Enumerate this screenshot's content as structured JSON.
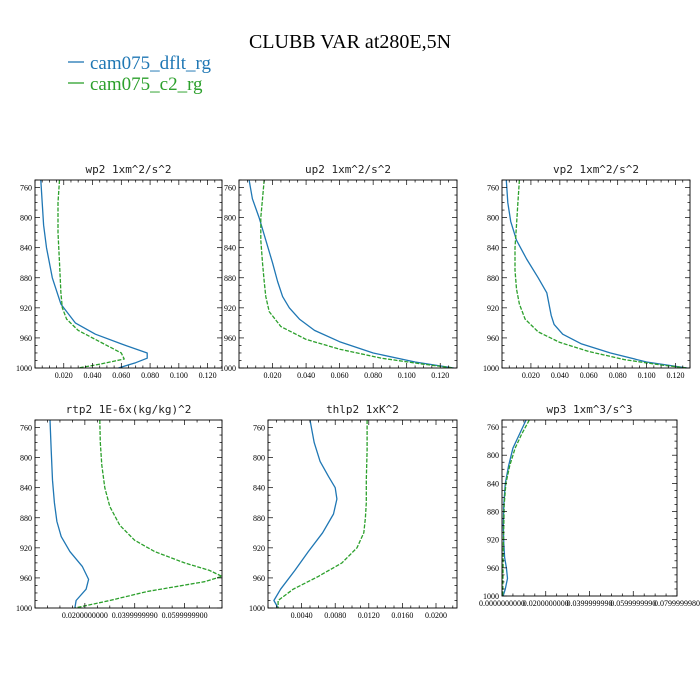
{
  "figure": {
    "title": "CLUBB VAR at280E,5N",
    "colors": {
      "dflt": "#1f77b4",
      "c2": "#2ca02c"
    },
    "legend": [
      {
        "label": "cam075_dflt_rg",
        "color": "#1f77b4"
      },
      {
        "label": "cam075_c2_rg",
        "color": "#2ca02c"
      }
    ]
  },
  "chart_data": [
    {
      "type": "line",
      "title": "wp2   1xm^2/s^2",
      "xlim": [
        0,
        0.13
      ],
      "ylim": [
        1000,
        750
      ],
      "xticks": [
        0.02,
        0.04,
        0.06,
        0.08,
        0.1,
        0.12
      ],
      "xtick_labels": [
        "0.020",
        "0.040",
        "0.060",
        "0.080",
        "0.100",
        "0.120"
      ],
      "yticks": [
        760,
        800,
        840,
        880,
        920,
        960,
        1000
      ],
      "series": [
        {
          "name": "cam075_dflt_rg",
          "color": "#1f77b4",
          "dashed": false,
          "x": [
            0.004,
            0.005,
            0.006,
            0.008,
            0.012,
            0.018,
            0.028,
            0.042,
            0.06,
            0.078,
            0.078,
            0.07,
            0.058
          ],
          "y": [
            750,
            780,
            810,
            840,
            880,
            915,
            940,
            955,
            968,
            980,
            987,
            993,
            1000
          ]
        },
        {
          "name": "cam075_c2_rg",
          "color": "#2ca02c",
          "dashed": true,
          "x": [
            0.017,
            0.016,
            0.016,
            0.017,
            0.018,
            0.019,
            0.022,
            0.03,
            0.045,
            0.06,
            0.062,
            0.045,
            0.03
          ],
          "y": [
            750,
            780,
            820,
            860,
            900,
            920,
            935,
            950,
            965,
            980,
            988,
            995,
            1000
          ]
        }
      ]
    },
    {
      "type": "line",
      "title": "up2   1xm^2/s^2",
      "xlim": [
        0,
        0.13
      ],
      "ylim": [
        1000,
        750
      ],
      "xticks": [
        0.02,
        0.04,
        0.06,
        0.08,
        0.1,
        0.12
      ],
      "xtick_labels": [
        "0.020",
        "0.040",
        "0.060",
        "0.080",
        "0.100",
        "0.120"
      ],
      "yticks": [
        760,
        800,
        840,
        880,
        920,
        960,
        1000
      ],
      "series": [
        {
          "name": "cam075_dflt_rg",
          "color": "#1f77b4",
          "dashed": false,
          "x": [
            0.006,
            0.008,
            0.012,
            0.016,
            0.02,
            0.023,
            0.026,
            0.03,
            0.036,
            0.045,
            0.06,
            0.08,
            0.105,
            0.128
          ],
          "y": [
            750,
            775,
            800,
            830,
            860,
            885,
            905,
            920,
            935,
            950,
            965,
            980,
            992,
            1000
          ]
        },
        {
          "name": "cam075_c2_rg",
          "color": "#2ca02c",
          "dashed": true,
          "x": [
            0.015,
            0.014,
            0.013,
            0.013,
            0.014,
            0.015,
            0.016,
            0.018,
            0.025,
            0.04,
            0.06,
            0.085,
            0.11,
            0.128
          ],
          "y": [
            750,
            775,
            800,
            830,
            860,
            885,
            905,
            925,
            945,
            962,
            975,
            987,
            995,
            1000
          ]
        }
      ]
    },
    {
      "type": "line",
      "title": "vp2   1xm^2/s^2",
      "xlim": [
        0,
        0.13
      ],
      "ylim": [
        1000,
        750
      ],
      "xticks": [
        0.02,
        0.04,
        0.06,
        0.08,
        0.1,
        0.12
      ],
      "xtick_labels": [
        "0.020",
        "0.040",
        "0.060",
        "0.080",
        "0.100",
        "0.120"
      ],
      "yticks": [
        760,
        800,
        840,
        880,
        920,
        960,
        1000
      ],
      "series": [
        {
          "name": "cam075_dflt_rg",
          "color": "#1f77b4",
          "dashed": false,
          "x": [
            0.003,
            0.004,
            0.006,
            0.01,
            0.017,
            0.025,
            0.031,
            0.033,
            0.034,
            0.036,
            0.042,
            0.055,
            0.075,
            0.1,
            0.128
          ],
          "y": [
            750,
            780,
            805,
            830,
            855,
            880,
            900,
            920,
            930,
            942,
            955,
            968,
            980,
            992,
            1000
          ]
        },
        {
          "name": "cam075_c2_rg",
          "color": "#2ca02c",
          "dashed": true,
          "x": [
            0.012,
            0.011,
            0.01,
            0.009,
            0.009,
            0.01,
            0.012,
            0.016,
            0.025,
            0.04,
            0.06,
            0.085,
            0.11,
            0.128
          ],
          "y": [
            750,
            780,
            810,
            840,
            870,
            895,
            915,
            935,
            952,
            966,
            978,
            989,
            996,
            1000
          ]
        }
      ]
    },
    {
      "type": "line",
      "title": "rtp2   1E-6x(kg/kg)^2",
      "xlim": [
        0,
        0.075
      ],
      "ylim": [
        1000,
        750
      ],
      "xticks": [
        0.02,
        0.04,
        0.06
      ],
      "xtick_labels": [
        "0.0200000000",
        "0.0399999990",
        "0.0599999900"
      ],
      "yticks": [
        760,
        800,
        840,
        880,
        920,
        960,
        1000
      ],
      "series": [
        {
          "name": "cam075_dflt_rg",
          "color": "#1f77b4",
          "dashed": false,
          "x": [
            0.006,
            0.0065,
            0.007,
            0.0078,
            0.0088,
            0.0105,
            0.014,
            0.019,
            0.0215,
            0.0205,
            0.0165,
            0.016
          ],
          "y": [
            750,
            790,
            830,
            860,
            885,
            905,
            925,
            945,
            962,
            975,
            990,
            1000
          ]
        },
        {
          "name": "cam075_c2_rg",
          "color": "#2ca02c",
          "dashed": true,
          "x": [
            0.026,
            0.0262,
            0.0268,
            0.028,
            0.03,
            0.034,
            0.04,
            0.048,
            0.06,
            0.07,
            0.075,
            0.068,
            0.045,
            0.03,
            0.016
          ],
          "y": [
            750,
            780,
            810,
            840,
            865,
            890,
            910,
            925,
            940,
            950,
            958,
            965,
            978,
            990,
            1000
          ]
        }
      ]
    },
    {
      "type": "line",
      "title": "thlp2   1xK^2",
      "xlim": [
        0,
        0.0225
      ],
      "ylim": [
        1000,
        750
      ],
      "xticks": [
        0.004,
        0.008,
        0.012,
        0.016,
        0.02
      ],
      "xtick_labels": [
        "0.0040",
        "0.0080",
        "0.0120",
        "0.0160",
        "0.0200"
      ],
      "yticks": [
        760,
        800,
        840,
        880,
        920,
        960,
        1000
      ],
      "series": [
        {
          "name": "cam075_dflt_rg",
          "color": "#1f77b4",
          "dashed": false,
          "x": [
            0.005,
            0.0055,
            0.0062,
            0.0072,
            0.008,
            0.0082,
            0.0078,
            0.0065,
            0.0048,
            0.0032,
            0.0015,
            0.0007,
            0.0012
          ],
          "y": [
            750,
            780,
            805,
            825,
            840,
            855,
            875,
            900,
            925,
            950,
            975,
            990,
            1000
          ]
        },
        {
          "name": "cam075_c2_rg",
          "color": "#2ca02c",
          "dashed": true,
          "x": [
            0.0118,
            0.0118,
            0.0117,
            0.0117,
            0.0116,
            0.0114,
            0.0106,
            0.0088,
            0.006,
            0.003,
            0.0012,
            0.0012
          ],
          "y": [
            750,
            790,
            830,
            860,
            880,
            900,
            920,
            940,
            958,
            975,
            990,
            1000
          ]
        }
      ]
    },
    {
      "type": "line",
      "title": "wp3   1xm^3/s^3",
      "xlim": [
        0,
        0.08
      ],
      "ylim": [
        1000,
        750
      ],
      "xticks": [
        0.0,
        0.02,
        0.04,
        0.06,
        0.08
      ],
      "xtick_labels": [
        "0.0000000000",
        "0.0200000000",
        "0.0399999990",
        "0.0599999990",
        "0.0799999980"
      ],
      "yticks": [
        760,
        800,
        840,
        880,
        920,
        960,
        1000
      ],
      "series": [
        {
          "name": "cam075_dflt_rg",
          "color": "#1f77b4",
          "dashed": false,
          "x": [
            0.011,
            0.008,
            0.005,
            0.003,
            0.0015,
            0.0008,
            0.0006,
            0.0008,
            0.0012,
            0.002,
            0.0025,
            0.0015,
            0.0005
          ],
          "y": [
            750,
            770,
            790,
            815,
            840,
            870,
            900,
            925,
            945,
            960,
            975,
            990,
            1000
          ]
        },
        {
          "name": "cam075_c2_rg",
          "color": "#2ca02c",
          "dashed": true,
          "x": [
            0.0125,
            0.009,
            0.006,
            0.0035,
            0.0018,
            0.001,
            0.0008,
            0.0006,
            0.0005,
            0.0004,
            0.0003
          ],
          "y": [
            750,
            770,
            790,
            815,
            840,
            870,
            900,
            930,
            955,
            980,
            1000
          ]
        }
      ]
    }
  ]
}
